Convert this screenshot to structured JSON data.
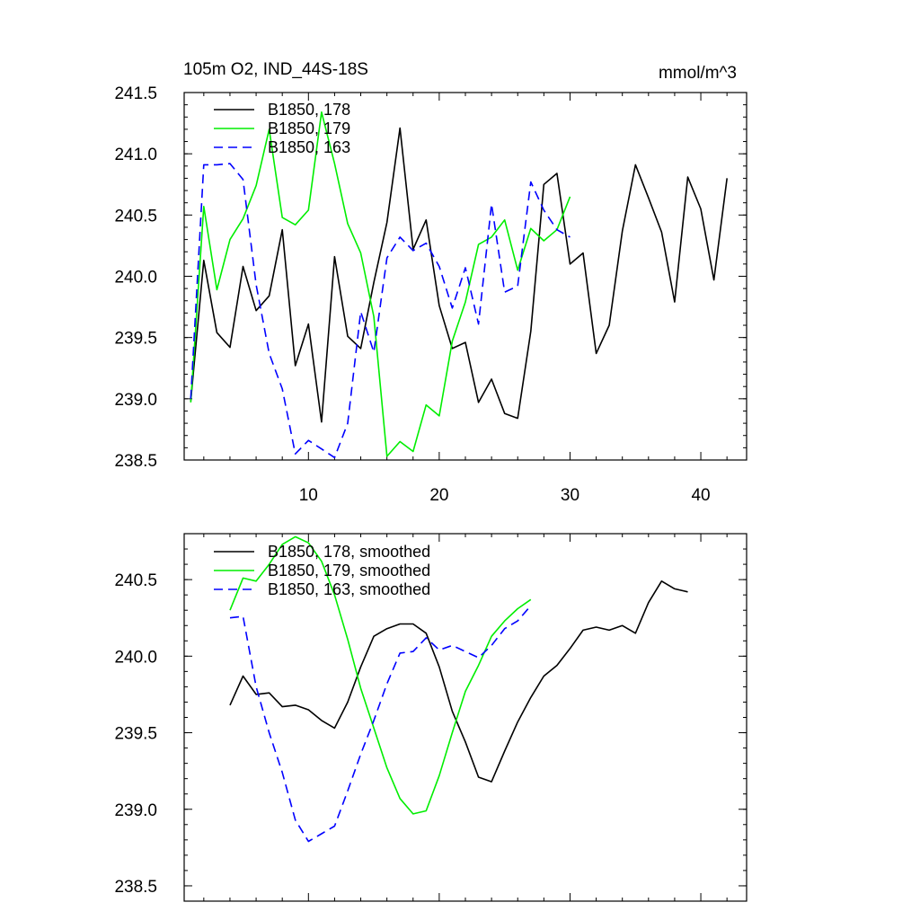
{
  "chart_data": [
    {
      "type": "line",
      "title": "105m O2, IND_44S-18S",
      "units": "mmol/m^3",
      "xlim": [
        0.5,
        43.5
      ],
      "ylim": [
        238.5,
        241.5
      ],
      "xticks_labeled": [
        10,
        20,
        30,
        40
      ],
      "yticks_labeled": [
        "238.5",
        "239.0",
        "239.5",
        "240.0",
        "240.5",
        "241.0",
        "241.5"
      ],
      "legend": "top-left",
      "series": [
        {
          "name": "B1850, 178",
          "color": "#000000",
          "dash": "solid",
          "x": [
            1,
            2,
            3,
            4,
            5,
            6,
            7,
            8,
            9,
            10,
            11,
            12,
            13,
            14,
            15,
            16,
            17,
            18,
            19,
            20,
            21,
            22,
            23,
            24,
            25,
            26,
            27,
            28,
            29,
            30,
            31,
            32,
            33,
            34,
            35,
            36,
            37,
            38,
            39,
            40,
            41,
            42
          ],
          "y": [
            238.98,
            240.13,
            239.54,
            239.42,
            240.08,
            239.72,
            239.84,
            240.38,
            239.27,
            239.61,
            238.81,
            240.16,
            239.51,
            239.41,
            239.95,
            240.44,
            241.21,
            240.22,
            240.46,
            239.76,
            239.41,
            239.46,
            238.97,
            239.16,
            238.88,
            238.84,
            239.55,
            240.75,
            240.84,
            240.1,
            240.19,
            239.37,
            239.6,
            240.37,
            240.91,
            240.64,
            240.36,
            239.79,
            240.81,
            240.55,
            239.97,
            240.8
          ]
        },
        {
          "name": "B1850, 179",
          "color": "#00ee00",
          "dash": "solid",
          "x": [
            1,
            2,
            3,
            4,
            5,
            6,
            7,
            8,
            9,
            10,
            11,
            12,
            13,
            14,
            15,
            16,
            17,
            18,
            19,
            20,
            21,
            22,
            23,
            24,
            25,
            26,
            27,
            28,
            29,
            30
          ],
          "y": [
            238.97,
            240.57,
            239.89,
            240.3,
            240.47,
            240.74,
            241.2,
            240.48,
            240.42,
            240.54,
            241.34,
            240.92,
            240.43,
            240.19,
            239.67,
            238.53,
            238.65,
            238.57,
            238.95,
            238.86,
            239.47,
            239.79,
            240.26,
            240.32,
            240.46,
            240.05,
            240.39,
            240.29,
            240.38,
            240.65
          ]
        },
        {
          "name": "B1850, 163",
          "color": "#0000ff",
          "dash": "dashed",
          "x": [
            1,
            2,
            3,
            4,
            5,
            6,
            7,
            8,
            9,
            10,
            11,
            12,
            13,
            14,
            15,
            16,
            17,
            18,
            19,
            20,
            21,
            22,
            23,
            24,
            25,
            26,
            27,
            28,
            29,
            30
          ],
          "y": [
            239.0,
            240.91,
            240.91,
            240.92,
            240.79,
            239.93,
            239.37,
            239.08,
            238.55,
            238.66,
            238.59,
            238.52,
            238.8,
            239.71,
            239.38,
            240.15,
            240.32,
            240.21,
            240.27,
            240.08,
            239.74,
            240.07,
            239.61,
            240.59,
            239.87,
            239.92,
            240.77,
            240.54,
            240.38,
            240.32
          ]
        }
      ]
    },
    {
      "type": "line",
      "xlim": [
        0.5,
        43.5
      ],
      "ylim": [
        238.4,
        240.8
      ],
      "xticks_labeled": [],
      "yticks_labeled": [
        "238.5",
        "239.0",
        "239.5",
        "240.0",
        "240.5"
      ],
      "legend": "top-left",
      "series": [
        {
          "name": "B1850, 178, smoothed",
          "color": "#000000",
          "dash": "solid",
          "x": [
            4,
            5,
            6,
            7,
            8,
            9,
            10,
            11,
            12,
            13,
            14,
            15,
            16,
            17,
            18,
            19,
            20,
            21,
            22,
            23,
            24,
            25,
            26,
            27,
            28,
            29,
            30,
            31,
            32,
            33,
            34,
            35,
            36,
            37,
            38,
            39
          ],
          "y": [
            239.68,
            239.87,
            239.75,
            239.76,
            239.67,
            239.68,
            239.65,
            239.58,
            239.53,
            239.7,
            239.93,
            240.13,
            240.18,
            240.21,
            240.21,
            240.15,
            239.93,
            239.64,
            239.44,
            239.21,
            239.18,
            239.38,
            239.57,
            239.73,
            239.87,
            239.94,
            240.05,
            240.17,
            240.19,
            240.17,
            240.2,
            240.15,
            240.35,
            240.49,
            240.44,
            240.42
          ]
        },
        {
          "name": "B1850, 179, smoothed",
          "color": "#00ee00",
          "dash": "solid",
          "x": [
            4,
            5,
            6,
            7,
            8,
            9,
            10,
            11,
            12,
            13,
            14,
            15,
            16,
            17,
            18,
            19,
            20,
            21,
            22,
            23,
            24,
            25,
            26,
            27
          ],
          "y": [
            240.3,
            240.51,
            240.49,
            240.6,
            240.73,
            240.78,
            240.74,
            240.62,
            240.4,
            240.11,
            239.79,
            239.53,
            239.27,
            239.07,
            238.97,
            238.99,
            239.22,
            239.5,
            239.77,
            239.94,
            240.13,
            240.23,
            240.31,
            240.37
          ]
        },
        {
          "name": "B1850, 163, smoothed",
          "color": "#0000ff",
          "dash": "dashed",
          "x": [
            4,
            5,
            6,
            7,
            8,
            9,
            10,
            11,
            12,
            13,
            14,
            15,
            16,
            17,
            18,
            19,
            20,
            21,
            22,
            23,
            24,
            25,
            26,
            27
          ],
          "y": [
            240.25,
            240.26,
            239.8,
            239.5,
            239.24,
            238.93,
            238.79,
            238.84,
            238.89,
            239.12,
            239.36,
            239.58,
            239.82,
            240.02,
            240.03,
            240.12,
            240.04,
            240.07,
            240.03,
            239.99,
            240.07,
            240.18,
            240.23,
            240.33
          ]
        }
      ]
    }
  ]
}
